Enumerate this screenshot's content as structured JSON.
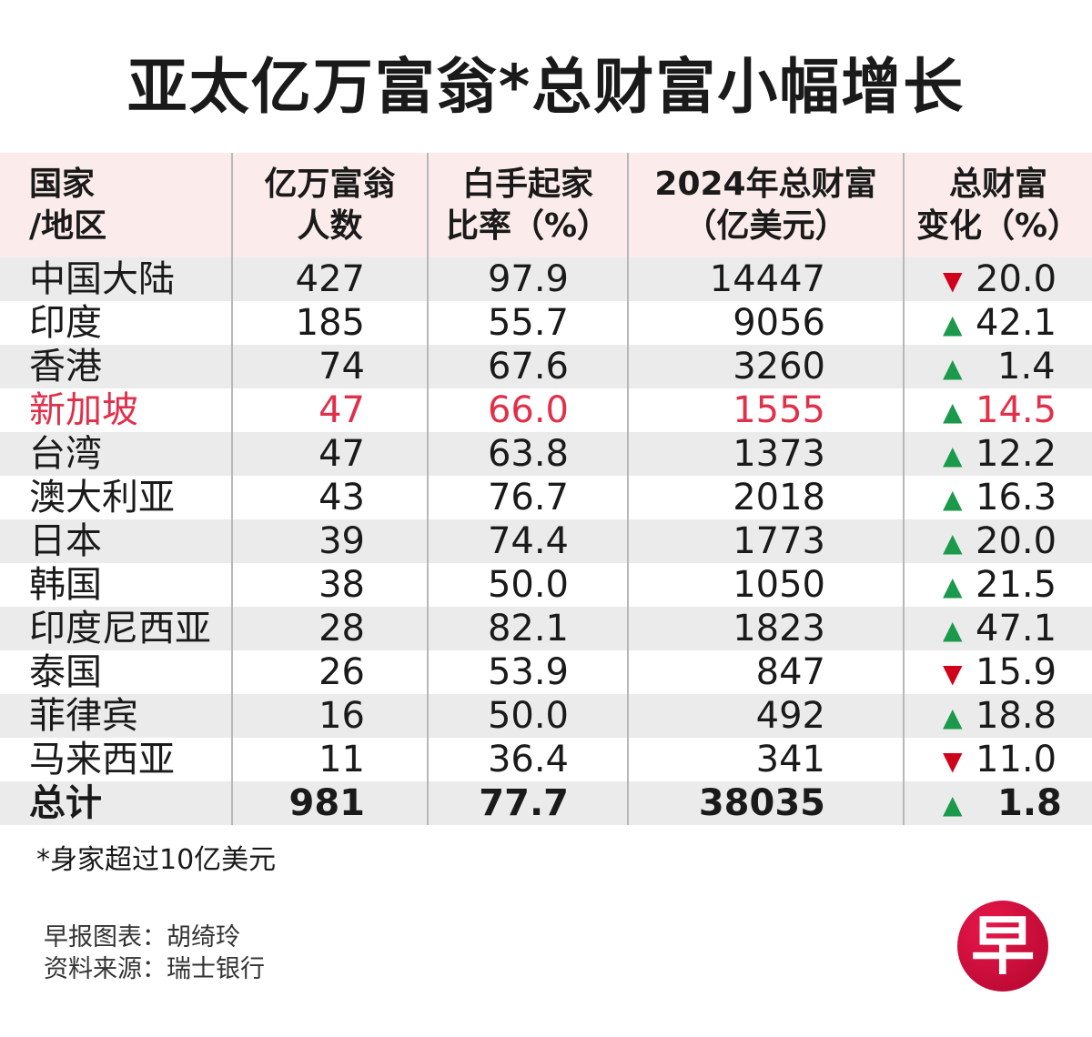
{
  "title": "亚太亿万富翁*总财富小幅增长",
  "colors": {
    "header_bg": "#fbeceb",
    "stripe": "#ebebeb",
    "highlight": "#e0304a",
    "up": "#1a9a4a",
    "down": "#d0021b",
    "logo": "#d10a3c"
  },
  "chart_data": {
    "type": "table",
    "columns": [
      [
        "国家",
        "/地区"
      ],
      [
        "亿万富翁",
        "人数"
      ],
      [
        "白手起家",
        "比率（%）"
      ],
      [
        "2024年总财富",
        "（亿美元）"
      ],
      [
        "总财富",
        "变化（%）"
      ]
    ],
    "rows": [
      {
        "name": "中国大陆",
        "count": "427",
        "selfmade": "97.9",
        "wealth": "14447",
        "dir": "down",
        "change": "20.0"
      },
      {
        "name": "印度",
        "count": "185",
        "selfmade": "55.7",
        "wealth": "9056",
        "dir": "up",
        "change": "42.1"
      },
      {
        "name": "香港",
        "count": "74",
        "selfmade": "67.6",
        "wealth": "3260",
        "dir": "up",
        "change": "1.4"
      },
      {
        "name": "新加坡",
        "count": "47",
        "selfmade": "66.0",
        "wealth": "1555",
        "dir": "up",
        "change": "14.5",
        "highlight": true
      },
      {
        "name": "台湾",
        "count": "47",
        "selfmade": "63.8",
        "wealth": "1373",
        "dir": "up",
        "change": "12.2"
      },
      {
        "name": "澳大利亚",
        "count": "43",
        "selfmade": "76.7",
        "wealth": "2018",
        "dir": "up",
        "change": "16.3"
      },
      {
        "name": "日本",
        "count": "39",
        "selfmade": "74.4",
        "wealth": "1773",
        "dir": "up",
        "change": "20.0"
      },
      {
        "name": "韩国",
        "count": "38",
        "selfmade": "50.0",
        "wealth": "1050",
        "dir": "up",
        "change": "21.5"
      },
      {
        "name": "印度尼西亚",
        "count": "28",
        "selfmade": "82.1",
        "wealth": "1823",
        "dir": "up",
        "change": "47.1"
      },
      {
        "name": "泰国",
        "count": "26",
        "selfmade": "53.9",
        "wealth": "847",
        "dir": "down",
        "change": "15.9"
      },
      {
        "name": "菲律宾",
        "count": "16",
        "selfmade": "50.0",
        "wealth": "492",
        "dir": "up",
        "change": "18.8"
      },
      {
        "name": "马来西亚",
        "count": "11",
        "selfmade": "36.4",
        "wealth": "341",
        "dir": "down",
        "change": "11.0"
      }
    ],
    "total": {
      "name": "总计",
      "count": "981",
      "selfmade": "77.7",
      "wealth": "38035",
      "dir": "up",
      "change": "1.8"
    }
  },
  "footnote": "*身家超过10亿美元",
  "credits": [
    "早报图表：胡绮玲",
    "资料来源：瑞士银行"
  ],
  "logo_text": "早"
}
